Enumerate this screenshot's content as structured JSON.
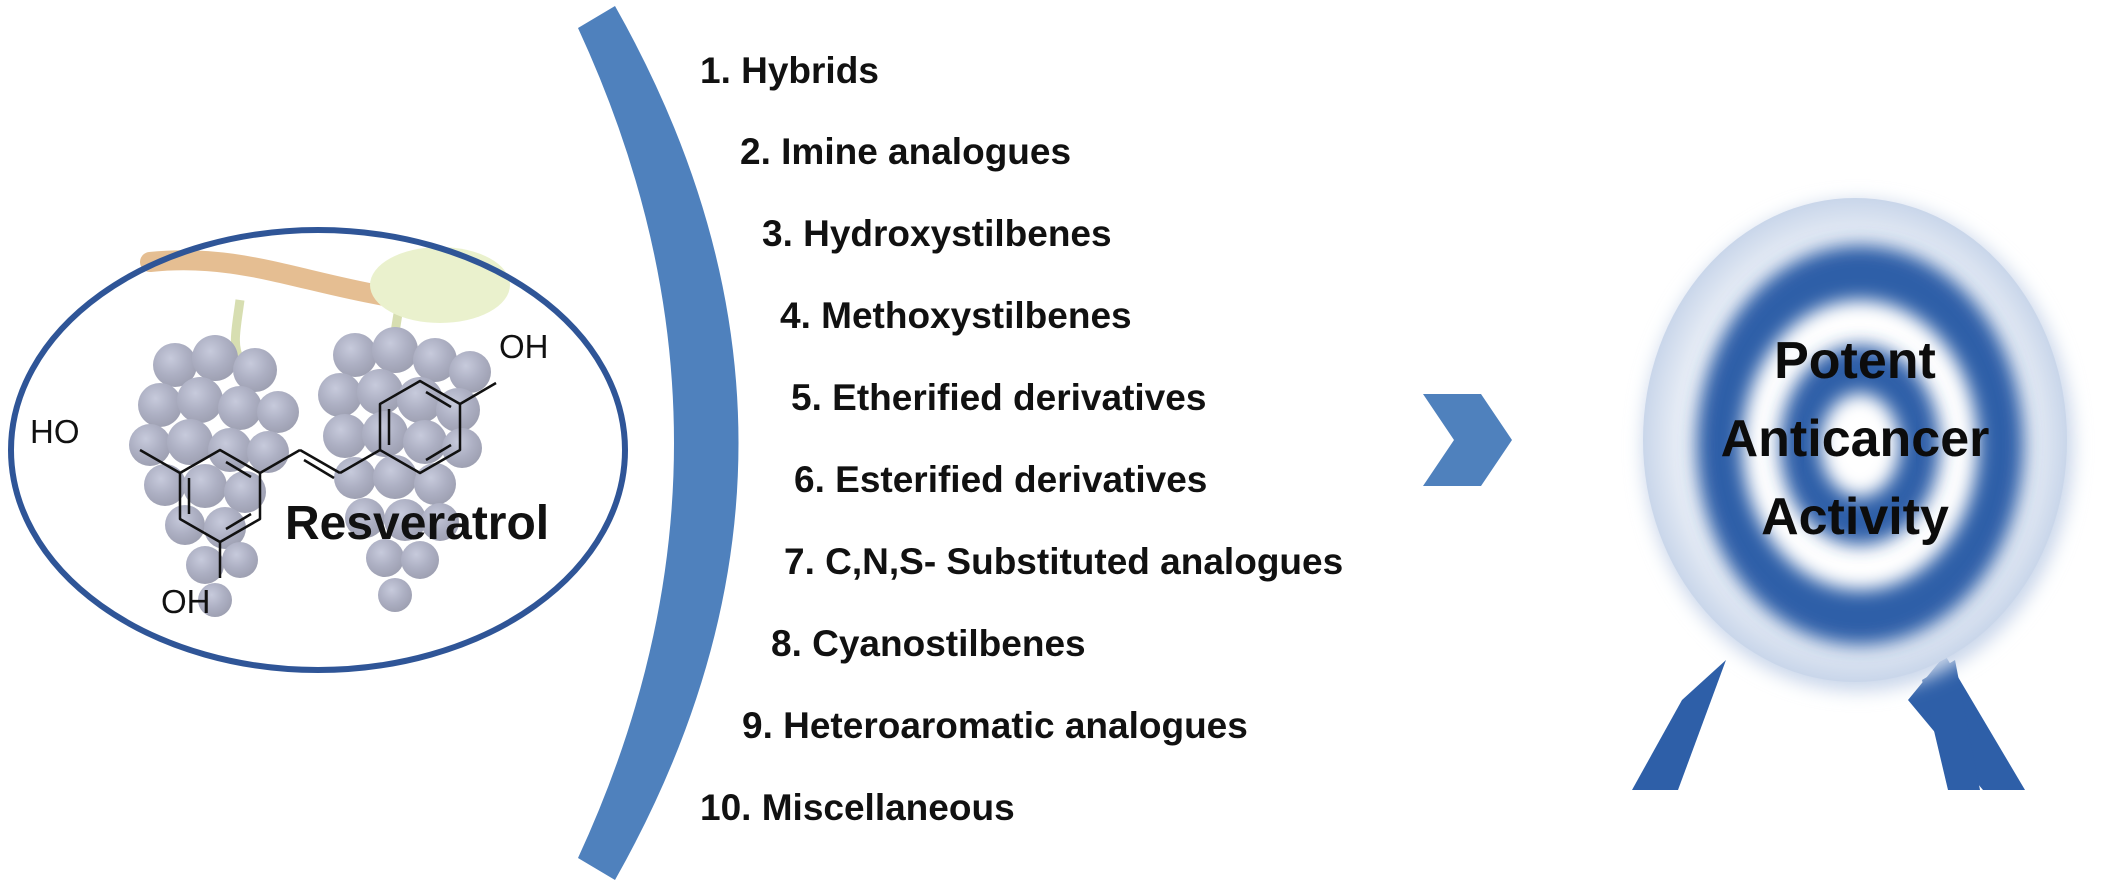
{
  "compound": {
    "name": "Resveratrol",
    "substituents": [
      "HO",
      "OH",
      "OH"
    ]
  },
  "modifications": [
    "1. Hybrids",
    "2. Imine analogues",
    "3. Hydroxystilbenes",
    "4. Methoxystilbenes",
    "5. Etherified derivatives",
    "6. Esterified derivatives",
    "7. C,N,S- Substituted analogues",
    "8. Cyanostilbenes",
    "9. Heteroaromatic analogues",
    "10. Miscellaneous"
  ],
  "target": {
    "lines": [
      "Potent",
      "Anticancer",
      "Activity"
    ]
  },
  "colors": {
    "accent_blue": "#4f81bd",
    "ellipse_border": "#2f5597",
    "target_dark": "#2e5fa8",
    "text": "#111111"
  }
}
